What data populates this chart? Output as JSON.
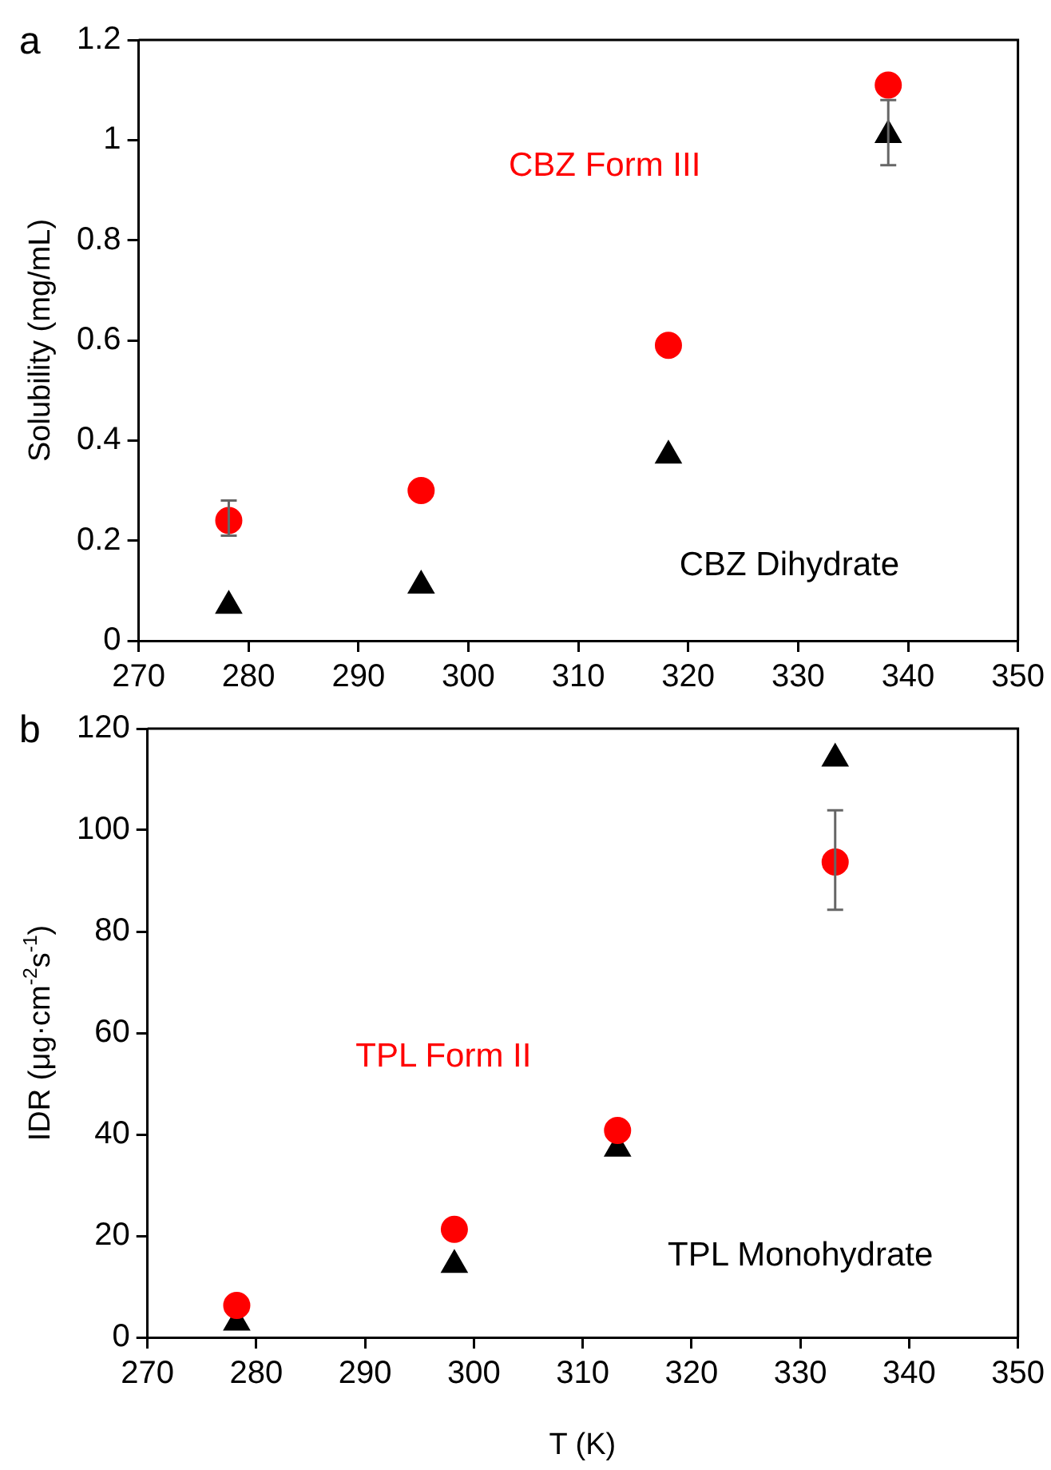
{
  "chart_data": [
    {
      "type": "scatter",
      "title": "a",
      "ylabel": "Solubility (mg/mL)",
      "xlim": [
        270,
        350
      ],
      "xticks": [
        270,
        280,
        290,
        300,
        310,
        320,
        330,
        340,
        350
      ],
      "ylim": [
        0,
        1.2
      ],
      "yticks": [
        0,
        0.2,
        0.4,
        0.6,
        0.8,
        1,
        1.2
      ],
      "grid": false,
      "legend": false,
      "series": [
        {
          "name": "CBZ Form III",
          "color": "#ff0000",
          "marker": "circle",
          "x": [
            278.2,
            295.7,
            318.2,
            338.2
          ],
          "values": [
            0.24,
            0.3,
            0.59,
            1.11
          ],
          "errors": [
            [
              0.21,
              0.28
            ],
            null,
            null,
            null
          ]
        },
        {
          "name": "CBZ Dihydrate",
          "color": "#000000",
          "marker": "triangle",
          "x": [
            278.2,
            295.7,
            318.2,
            338.2
          ],
          "values": [
            0.07,
            0.11,
            0.37,
            1.01
          ],
          "errors": [
            null,
            null,
            null,
            [
              0.95,
              1.08
            ]
          ]
        }
      ]
    },
    {
      "type": "scatter",
      "title": "b",
      "xlabel": "T (K)",
      "ylabel": "IDR (μg·cm$^{-2}$s$^{-1}$)",
      "xlim": [
        270,
        350
      ],
      "xticks": [
        270,
        280,
        290,
        300,
        310,
        320,
        330,
        340,
        350
      ],
      "ylim": [
        0,
        120
      ],
      "yticks": [
        0,
        20,
        40,
        60,
        80,
        100,
        120
      ],
      "grid": false,
      "legend": false,
      "series": [
        {
          "name": "TPL Form II",
          "color": "#ff0000",
          "marker": "circle",
          "x": [
            278.2,
            298.2,
            313.2,
            333.2
          ],
          "values": [
            6.3,
            21.3,
            40.8,
            93.7
          ],
          "errors": [
            null,
            null,
            null,
            [
              84.3,
              103.9
            ]
          ]
        },
        {
          "name": "TPL Monohydrate",
          "color": "#000000",
          "marker": "triangle",
          "x": [
            278.2,
            298.2,
            313.2,
            333.2
          ],
          "values": [
            2.9,
            14.3,
            37.2,
            114.1
          ]
        }
      ]
    }
  ]
}
